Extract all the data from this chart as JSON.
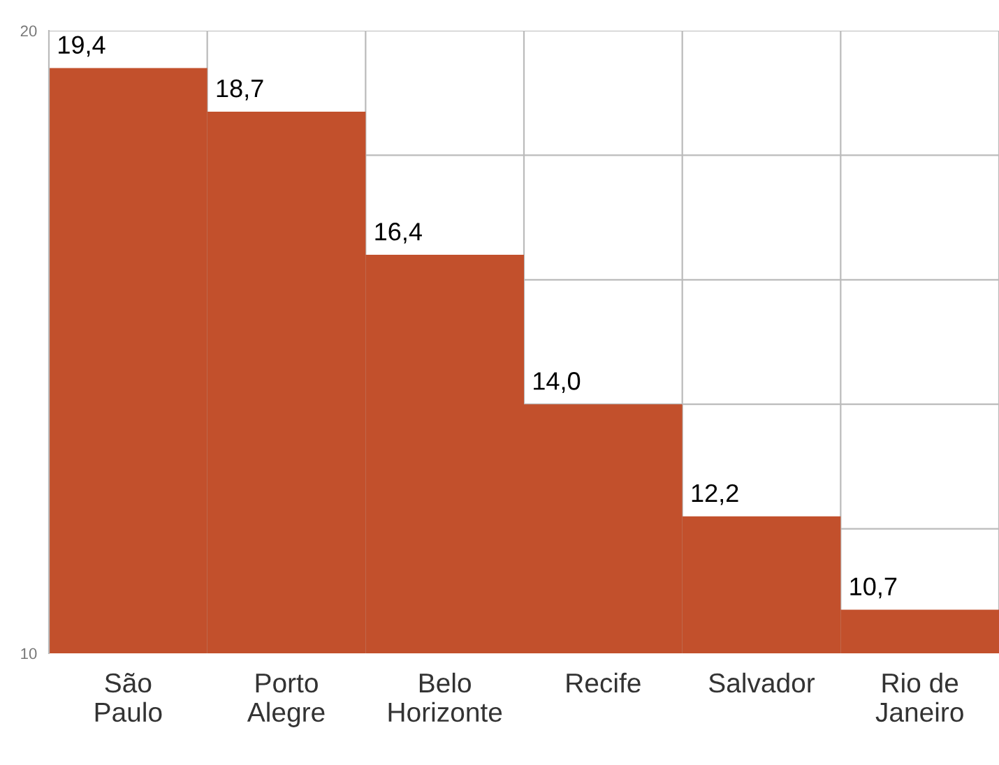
{
  "chart_data": {
    "type": "bar",
    "categories": [
      "São\nPaulo",
      "Porto\nAlegre",
      "Belo\nHorizonte",
      "Recife",
      "Salvador",
      "Rio de\nJaneiro"
    ],
    "values": [
      19.4,
      18.7,
      16.4,
      14.0,
      12.2,
      10.7
    ],
    "value_labels": [
      "19,4",
      "18,7",
      "16,4",
      "14,0",
      "12,2",
      "10,7"
    ],
    "color": "#c2502c",
    "ylim": [
      10,
      20
    ],
    "yticks": [
      10,
      {
        "value": 12,
        "label": null
      },
      {
        "value": 14,
        "label": null
      },
      {
        "value": 16,
        "label": null
      },
      {
        "value": 18,
        "label": null
      },
      20
    ],
    "grid": true
  }
}
